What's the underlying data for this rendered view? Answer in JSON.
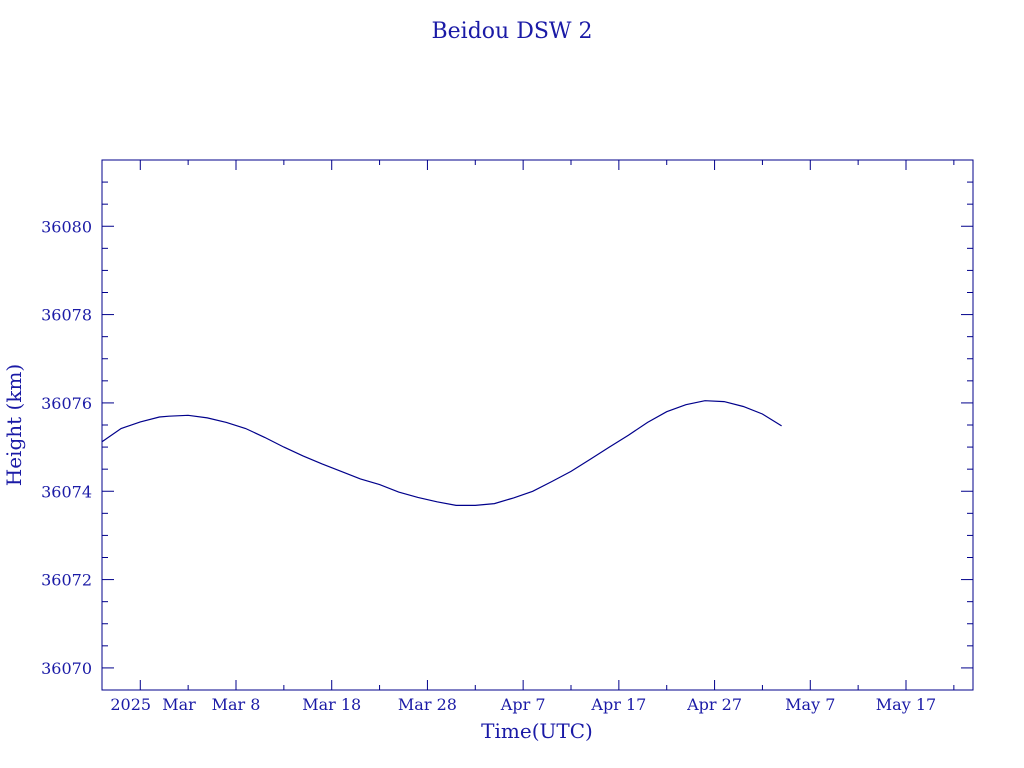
{
  "chart_data": {
    "type": "line",
    "title": "Beidou DSW 2",
    "xlabel": "Time(UTC)",
    "ylabel": "Height (km)",
    "ylim": [
      36069.5,
      36081.5
    ],
    "xlim": [
      "2025-02-22",
      "2025-05-24"
    ],
    "grid": false,
    "colors": {
      "axis": "#00008b",
      "line": "#00008b",
      "text": "#1a1aa6"
    },
    "x_tick_labels": [
      {
        "date": "2025-02-25",
        "label": "2025"
      },
      {
        "date": "2025-03-08",
        "label": "Mar  8"
      },
      {
        "date": "2025-03-18",
        "label": "Mar 18"
      },
      {
        "date": "2025-03-28",
        "label": "Mar 28"
      },
      {
        "date": "2025-04-07",
        "label": "Apr  7"
      },
      {
        "date": "2025-04-17",
        "label": "Apr 17"
      },
      {
        "date": "2025-04-27",
        "label": "Apr 27"
      },
      {
        "date": "2025-05-07",
        "label": "May  7"
      },
      {
        "date": "2025-05-17",
        "label": "May 17"
      }
    ],
    "x_month_label": {
      "date": "2025-03-01",
      "label": "Mar"
    },
    "y_tick_labels": [
      36070,
      36072,
      36074,
      36076,
      36078,
      36080
    ],
    "series": [
      {
        "x": [
          "2025-02-22",
          "2025-02-24",
          "2025-02-26",
          "2025-02-28",
          "2025-03-01",
          "2025-03-03",
          "2025-03-05",
          "2025-03-07",
          "2025-03-09",
          "2025-03-11",
          "2025-03-13",
          "2025-03-15",
          "2025-03-17",
          "2025-03-19",
          "2025-03-21",
          "2025-03-23",
          "2025-03-25",
          "2025-03-27",
          "2025-03-29",
          "2025-03-31",
          "2025-04-02",
          "2025-04-04",
          "2025-04-06",
          "2025-04-08",
          "2025-04-10",
          "2025-04-12",
          "2025-04-14",
          "2025-04-16",
          "2025-04-18",
          "2025-04-20",
          "2025-04-22",
          "2025-04-24",
          "2025-04-26",
          "2025-04-28",
          "2025-04-30",
          "2025-05-02",
          "2025-05-04"
        ],
        "y": [
          36075.12,
          36075.42,
          36075.57,
          36075.68,
          36075.7,
          36075.72,
          36075.66,
          36075.56,
          36075.42,
          36075.22,
          36075.0,
          36074.8,
          36074.62,
          36074.45,
          36074.28,
          36074.15,
          36073.98,
          36073.86,
          36073.76,
          36073.68,
          36073.68,
          36073.72,
          36073.85,
          36074.0,
          36074.22,
          36074.45,
          36074.72,
          36075.0,
          36075.27,
          36075.56,
          36075.8,
          36075.96,
          36076.05,
          36076.03,
          36075.92,
          36075.75,
          36075.48
        ]
      }
    ]
  }
}
